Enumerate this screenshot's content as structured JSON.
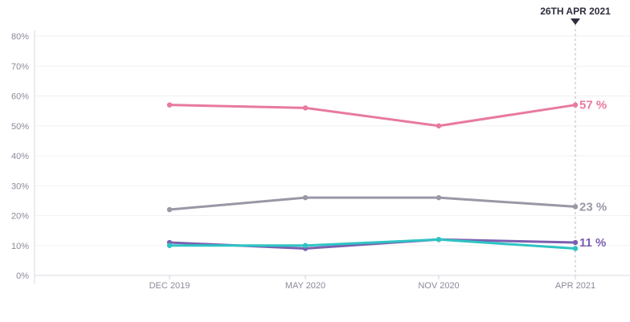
{
  "chart_data": {
    "type": "line",
    "title": "",
    "xlabel": "",
    "ylabel": "",
    "categories": [
      "DEC 2019",
      "MAY 2020",
      "NOV 2020",
      "APR 2021"
    ],
    "ylim": [
      0,
      80
    ],
    "yticks": [
      "0%",
      "10%",
      "20%",
      "30%",
      "40%",
      "50%",
      "60%",
      "70%",
      "80%"
    ],
    "grid": true,
    "legend": "none",
    "marker": {
      "label": "26TH APR 2021",
      "category_index": 3
    },
    "series": [
      {
        "values": [
          57,
          56,
          50,
          57
        ],
        "color": "#e8799f",
        "end_label": "57 %"
      },
      {
        "values": [
          22,
          26,
          26,
          23
        ],
        "color": "#9a97a6",
        "end_label": "23 %"
      },
      {
        "values": [
          11,
          9,
          12,
          11
        ],
        "color": "#7b5fb0",
        "end_label": "11 %"
      },
      {
        "values": [
          10,
          10,
          12,
          9
        ],
        "color": "#2ec4c4",
        "end_label": ""
      }
    ]
  }
}
